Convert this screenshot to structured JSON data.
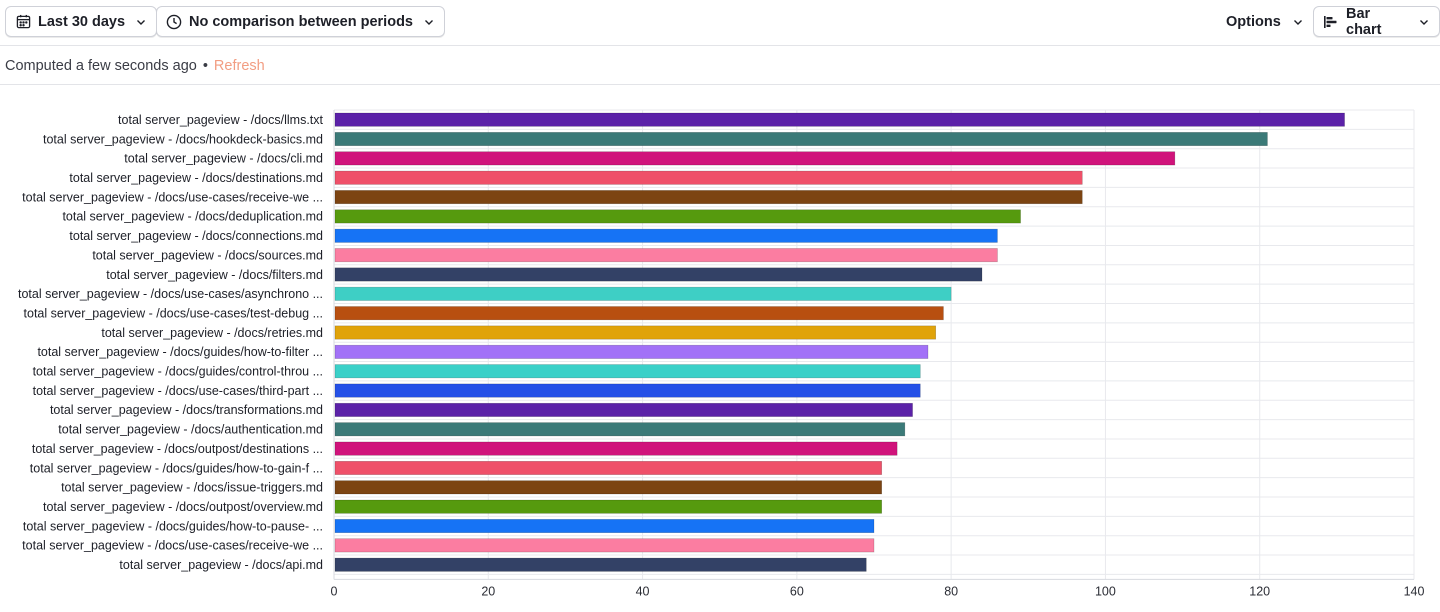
{
  "toolbar": {
    "date_range": {
      "label": "Last 30 days",
      "icon": "calendar-icon"
    },
    "comparison": {
      "label": "No comparison between periods",
      "icon": "clock-icon"
    },
    "options": {
      "label": "Options"
    },
    "chart_type": {
      "label": "Bar chart",
      "icon": "bar-chart-icon"
    }
  },
  "status": {
    "computed_text": "Computed a few seconds ago",
    "separator": "•",
    "refresh_label": "Refresh",
    "refresh_color": "#f29d82"
  },
  "chart_data": {
    "type": "bar",
    "orientation": "horizontal",
    "categories": [
      "total server_pageview - /docs/llms.txt",
      "total server_pageview - /docs/hookdeck-basics.md",
      "total server_pageview - /docs/cli.md",
      "total server_pageview - /docs/destinations.md",
      "total server_pageview - /docs/use-cases/receive-we ...",
      "total server_pageview - /docs/deduplication.md",
      "total server_pageview - /docs/connections.md",
      "total server_pageview - /docs/sources.md",
      "total server_pageview - /docs/filters.md",
      "total server_pageview - /docs/use-cases/asynchrono ...",
      "total server_pageview - /docs/use-cases/test-debug ...",
      "total server_pageview - /docs/retries.md",
      "total server_pageview - /docs/guides/how-to-filter ...",
      "total server_pageview - /docs/guides/control-throu ...",
      "total server_pageview - /docs/use-cases/third-part ...",
      "total server_pageview - /docs/transformations.md",
      "total server_pageview - /docs/authentication.md",
      "total server_pageview - /docs/outpost/destinations ...",
      "total server_pageview - /docs/guides/how-to-gain-f ...",
      "total server_pageview - /docs/issue-triggers.md",
      "total server_pageview - /docs/outpost/overview.md",
      "total server_pageview - /docs/guides/how-to-pause- ...",
      "total server_pageview - /docs/use-cases/receive-we ...",
      "total server_pageview - /docs/api.md"
    ],
    "values": [
      131,
      121,
      109,
      97,
      97,
      89,
      86,
      86,
      84,
      80,
      79,
      78,
      77,
      76,
      76,
      75,
      74,
      73,
      71,
      71,
      71,
      70,
      70,
      69
    ],
    "colors": [
      "#5b21a8",
      "#3b7a78",
      "#d0137b",
      "#ef5069",
      "#7c4412",
      "#569a0e",
      "#1673f5",
      "#fb7da1",
      "#334166",
      "#3ecfc5",
      "#b84f10",
      "#e0a30a",
      "#a271f7",
      "#3ad0c8",
      "#2450e7",
      "#5b21a8",
      "#3b7a78",
      "#d0137b",
      "#ef5069",
      "#7c4412",
      "#569a0e",
      "#1673f5",
      "#fb7da1",
      "#334166"
    ],
    "x_ticks": [
      "0",
      "20",
      "40",
      "60",
      "80",
      "100",
      "120",
      "140"
    ],
    "xlim": [
      0,
      140
    ],
    "grid": true,
    "title": "",
    "xlabel": "",
    "ylabel": ""
  }
}
